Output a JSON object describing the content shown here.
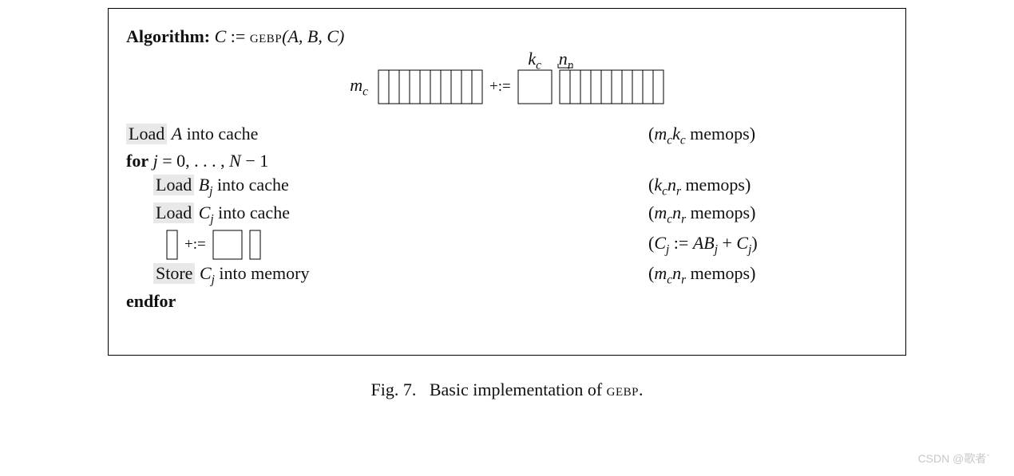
{
  "header": {
    "prefix": "Algorithm:",
    "lhs": "C",
    "op": ":=",
    "fn": "gebp",
    "args": "(A, B, C)"
  },
  "diagram": {
    "mc_label": "m",
    "mc_sub": "c",
    "kc_label": "k",
    "kc_sub": "c",
    "nr_label": "n",
    "nr_sub": "r",
    "plus_eq": "+:=",
    "C_strips": 10,
    "C_height": 42,
    "C_strip_w": 13,
    "A_width": 42,
    "A_height": 42,
    "B_strips": 10,
    "B_height": 42,
    "B_strip_w": 13
  },
  "lines": [
    {
      "kind": "boxed",
      "indent": 0,
      "boxed_prefix": "Load",
      "rest_html": " <span class='ital'>A</span> into cache",
      "right_html": "(<span class='ital'>m</span><span class='sub'>c</span><span class='ital'>k</span><span class='sub'>c</span> memops)"
    },
    {
      "kind": "plain",
      "indent": 0,
      "left_html": "<span class='bold'>for</span> <span class='ital'>j</span> = 0, . . . , <span class='ital'>N</span> − 1",
      "right_html": ""
    },
    {
      "kind": "boxed",
      "indent": 1,
      "boxed_prefix": "Load",
      "rest_html": " <span class='ital'>B</span><span class='sub'>j</span> into cache",
      "right_html": "(<span class='ital'>k</span><span class='sub'>c</span><span class='ital'>n</span><span class='sub'>r</span> memops)"
    },
    {
      "kind": "boxed",
      "indent": 1,
      "boxed_prefix": "Load",
      "rest_html": " <span class='ital'>C</span><span class='sub'>j</span> into cache",
      "right_html": "(<span class='ital'>m</span><span class='sub'>c</span><span class='ital'>n</span><span class='sub'>r</span> memops)"
    },
    {
      "kind": "diagram",
      "indent": 2,
      "right_html": "(<span class='ital'>C</span><span class='sub'>j</span> := <span class='ital'>AB</span><span class='sub'>j</span> + <span class='ital'>C</span><span class='sub'>j</span>)"
    },
    {
      "kind": "boxed",
      "indent": 1,
      "boxed_prefix": "Store",
      "rest_html": " <span class='ital'>C</span><span class='sub'>j</span> into memory",
      "right_html": "(<span class='ital'>m</span><span class='sub'>c</span><span class='ital'>n</span><span class='sub'>r</span> memops)"
    },
    {
      "kind": "plain",
      "indent": 0,
      "left_html": "<span class='bold'>endfor</span>",
      "right_html": ""
    }
  ],
  "small_diagram": {
    "C_w": 13,
    "C_h": 36,
    "A_w": 36,
    "A_h": 36,
    "B_w": 13,
    "B_h": 36,
    "plus_eq": "+:="
  },
  "caption": {
    "label": "Fig. 7.",
    "text": "Basic implementation of ",
    "fn": "gebp",
    "suffix": "."
  },
  "watermark": "CSDN @歌者`"
}
